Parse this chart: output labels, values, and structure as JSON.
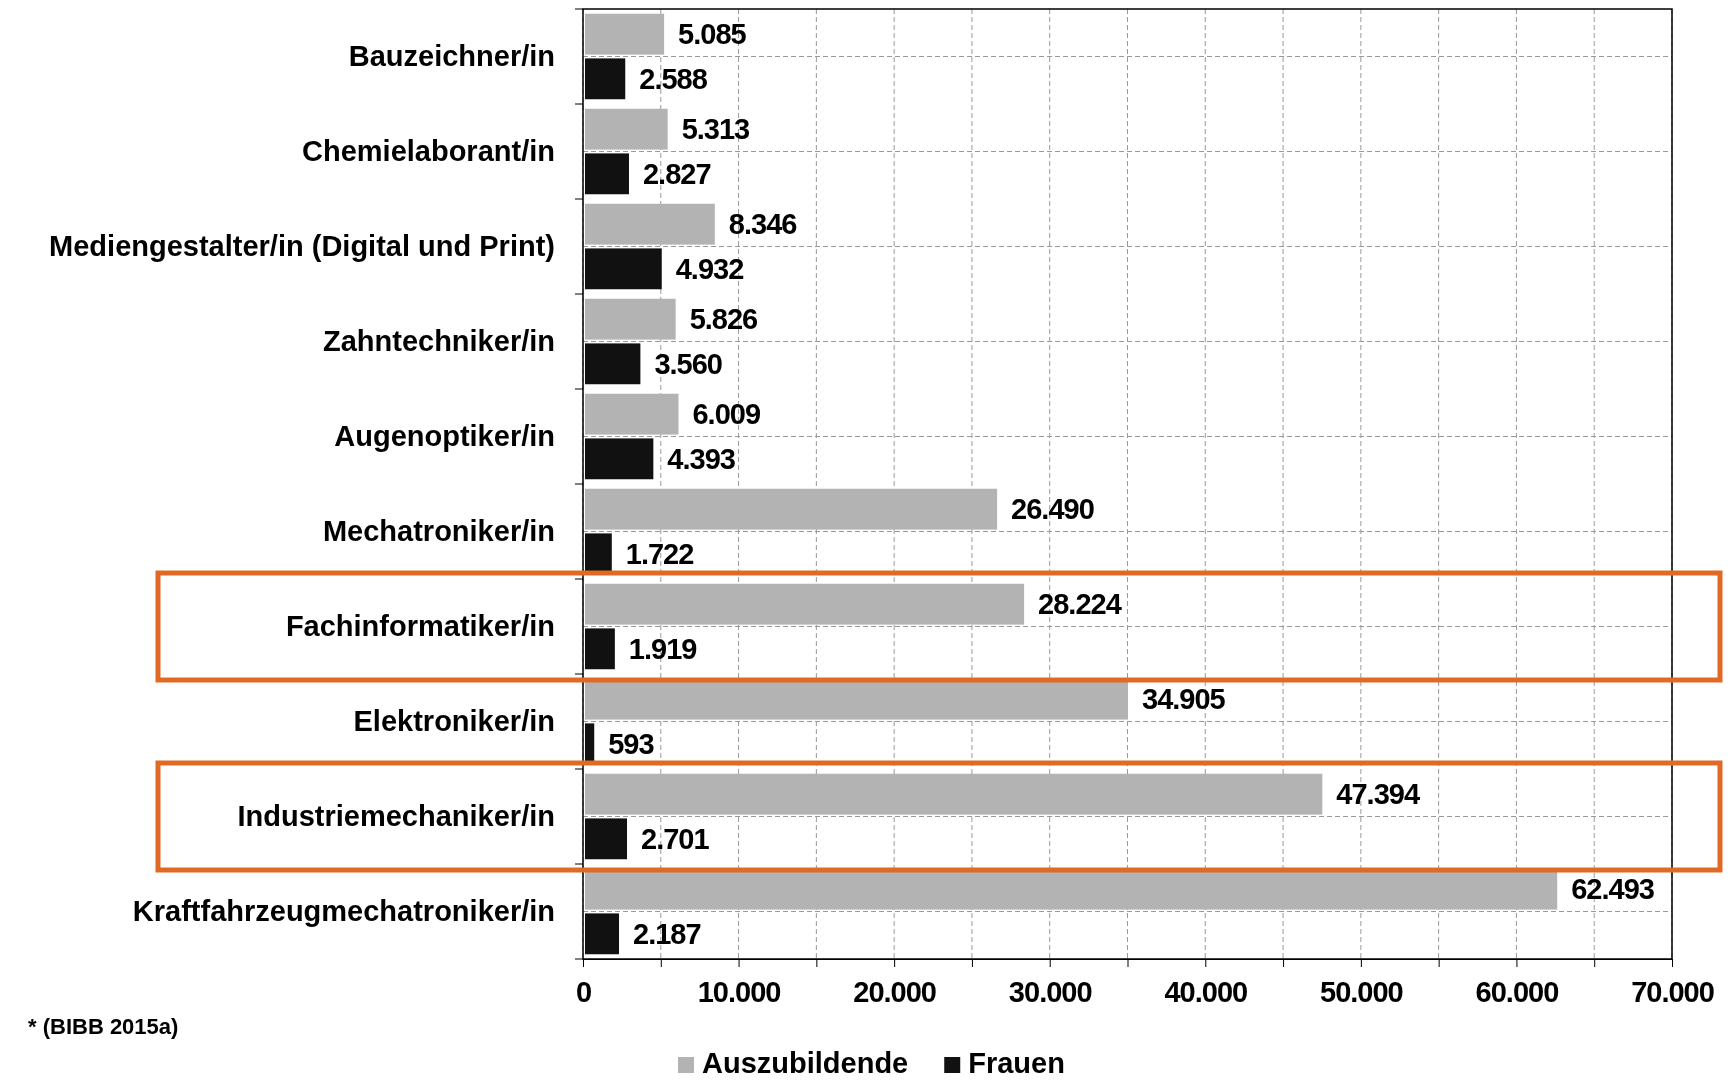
{
  "chart_data": {
    "type": "bar",
    "orientation": "horizontal",
    "categories": [
      "Bauzeichner/in",
      "Chemielaborant/in",
      "Mediengestalter/in (Digital und Print)",
      "Zahntechniker/in",
      "Augenoptiker/in",
      "Mechatroniker/in",
      "Fachinformatiker/in",
      "Elektroniker/in",
      "Industriemechaniker/in",
      "Kraftfahrzeugmechatroniker/in"
    ],
    "series": [
      {
        "name": "Auszubildende",
        "color": "#b3b3b3",
        "values": [
          5085,
          5313,
          8346,
          5826,
          6009,
          26490,
          28224,
          34905,
          47394,
          62493
        ],
        "value_labels": [
          "5.085",
          "5.313",
          "8.346",
          "5.826",
          "6.009",
          "26.490",
          "28.224",
          "34.905",
          "47.394",
          "62.493"
        ]
      },
      {
        "name": "Frauen",
        "color": "#111111",
        "values": [
          2588,
          2827,
          4932,
          3560,
          4393,
          1722,
          1919,
          593,
          2701,
          2187
        ],
        "value_labels": [
          "2.588",
          "2.827",
          "4.932",
          "3.560",
          "4.393",
          "1.722",
          "1.919",
          "593",
          "2.701",
          "2.187"
        ]
      }
    ],
    "xlim": [
      0,
      70000
    ],
    "xticks": [
      0,
      {
        "value": 5000,
        "label": null
      },
      {
        "value": 10000,
        "label": "10.000"
      },
      {
        "value": 15000,
        "label": null
      },
      {
        "value": 20000,
        "label": "20.000"
      },
      {
        "value": 25000,
        "label": null
      },
      {
        "value": 30000,
        "label": "30.000"
      },
      {
        "value": 35000,
        "label": null
      },
      {
        "value": 40000,
        "label": "40.000"
      },
      {
        "value": 45000,
        "label": null
      },
      {
        "value": 50000,
        "label": "50.000"
      },
      {
        "value": 55000,
        "label": null
      },
      {
        "value": 60000,
        "label": "60.000"
      },
      {
        "value": 65000,
        "label": null
      },
      {
        "value": 70000,
        "label": "70.000"
      }
    ],
    "grid": true,
    "legend": "bottom",
    "annotations": [
      "* (BIBB 2015a)"
    ]
  }
}
